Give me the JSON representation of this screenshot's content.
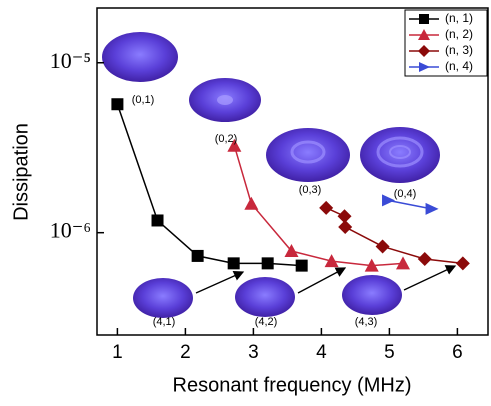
{
  "chart_data": {
    "type": "line",
    "log_y": true,
    "xlabel": "Resonant frequency (MHz)",
    "ylabel": "Dissipation",
    "xlim": [
      0.7,
      6.45
    ],
    "xticks": [
      1,
      2,
      3,
      4,
      5,
      6
    ],
    "ylim": [
      2.5e-07,
      2.1e-05
    ],
    "yticks": [
      {
        "value": 1e-05,
        "label": "10⁻⁵"
      },
      {
        "value": 1e-06,
        "label": "10⁻⁶"
      }
    ],
    "legend": "top-right",
    "series": [
      {
        "name": "(n, 1)",
        "color": "#000000",
        "marker": "square",
        "x": [
          1.0,
          1.59,
          2.18,
          2.71,
          3.21,
          3.71
        ],
        "values": [
          5.7e-06,
          1.18e-06,
          7.3e-07,
          6.6e-07,
          6.6e-07,
          6.4e-07
        ]
      },
      {
        "name": "(n, 2)",
        "color": "#c8283c",
        "marker": "triangle",
        "x": [
          2.72,
          2.97,
          3.56,
          4.15,
          4.74,
          5.2
        ],
        "values": [
          3.25e-06,
          1.48e-06,
          7.8e-07,
          6.8e-07,
          6.4e-07,
          6.6e-07
        ]
      },
      {
        "name": "(n, 3)",
        "color": "#8b0a0a",
        "marker": "diamond",
        "x": [
          4.07,
          4.34,
          4.35,
          4.9,
          5.52,
          6.08
        ],
        "values": [
          1.4e-06,
          1.25e-06,
          1.08e-06,
          8.3e-07,
          7e-07,
          6.6e-07
        ]
      },
      {
        "name": "(n, 4)",
        "color": "#3a4bd6",
        "marker": "triangle-right",
        "x": [
          4.98,
          5.62
        ],
        "values": [
          1.55e-06,
          1.38e-06
        ]
      }
    ],
    "annotations": [
      "(0,1)",
      "(0,2)",
      "(0,3)",
      "(0,4)",
      "(4,1)",
      "(4,2)",
      "(4,3)"
    ]
  }
}
